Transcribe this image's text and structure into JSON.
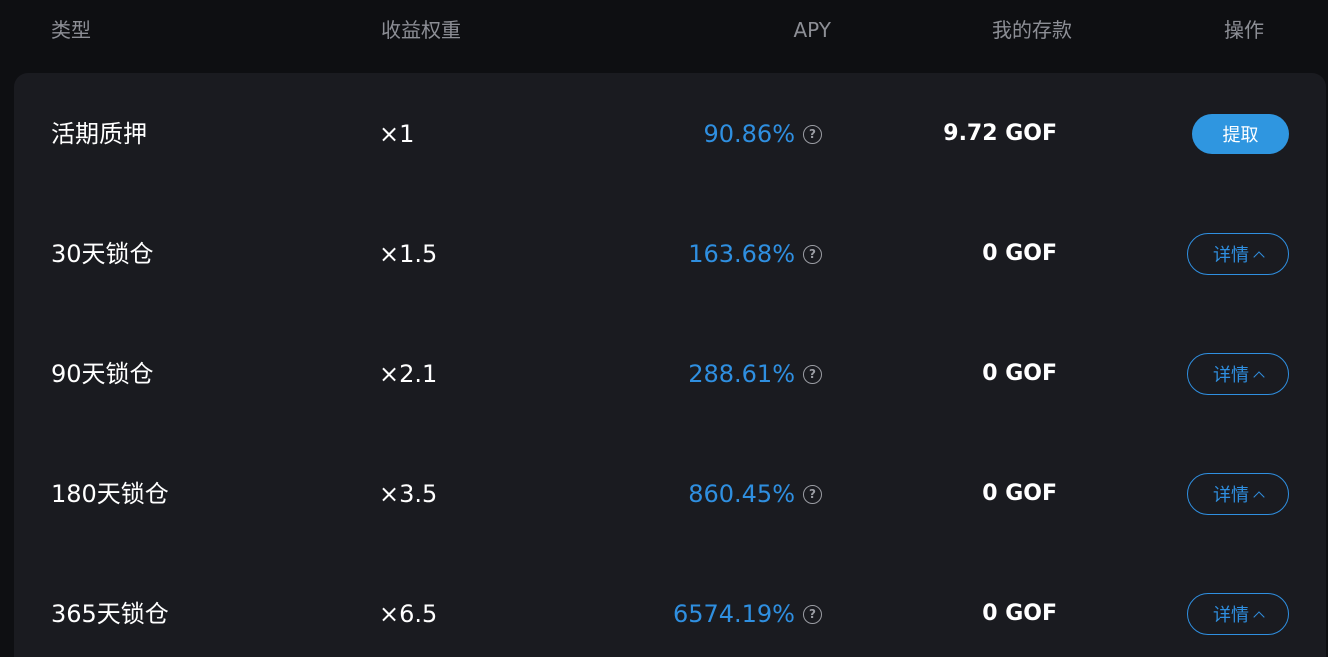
{
  "header": {
    "type": "类型",
    "weight": "收益权重",
    "apy": "APY",
    "deposit": "我的存款",
    "action": "操作"
  },
  "rows": [
    {
      "type": "活期质押",
      "weight": "×1",
      "apy": "90.86%",
      "deposit": "9.72 GOF",
      "action": "提取",
      "action_style": "primary"
    },
    {
      "type": "30天锁仓",
      "weight": "×1.5",
      "apy": "163.68%",
      "deposit": "0 GOF",
      "action": "详情",
      "action_style": "outline"
    },
    {
      "type": "90天锁仓",
      "weight": "×2.1",
      "apy": "288.61%",
      "deposit": "0 GOF",
      "action": "详情",
      "action_style": "outline"
    },
    {
      "type": "180天锁仓",
      "weight": "×3.5",
      "apy": "860.45%",
      "deposit": "0 GOF",
      "action": "详情",
      "action_style": "outline"
    },
    {
      "type": "365天锁仓",
      "weight": "×6.5",
      "apy": "6574.19%",
      "deposit": "0 GOF",
      "action": "详情",
      "action_style": "outline"
    }
  ],
  "icons": {
    "help": "question-circle-icon",
    "expand": "chevron-up-icon"
  },
  "colors": {
    "accent": "#2f8fe0",
    "background": "#0e0f12",
    "panel": "#1a1b20"
  }
}
